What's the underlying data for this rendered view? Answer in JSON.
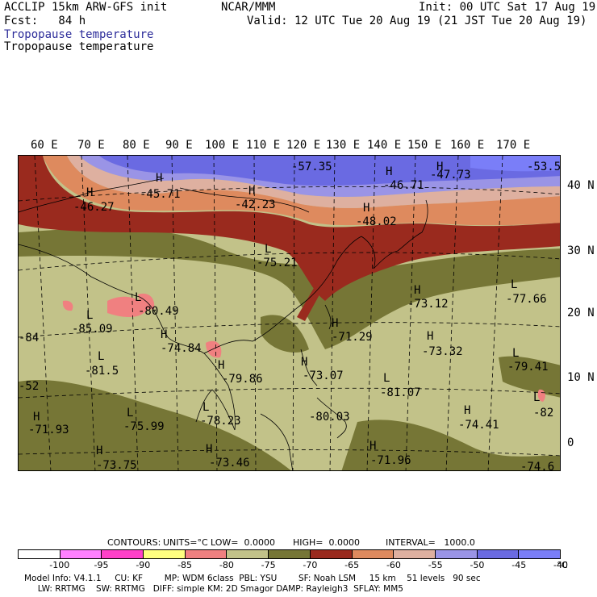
{
  "header": {
    "model_title": "ACCLIP 15km ARW-GFS init",
    "org": "NCAR/MMM",
    "init_time": "Init: 00 UTC Sat 17 Aug 19",
    "forecast": "Fcst:   84 h",
    "valid_time": "Valid: 12 UTC Tue 20 Aug 19 (21 JST Tue 20 Aug 19)",
    "field_shaded": "Tropopause temperature",
    "field_label": "Tropopause temperature"
  },
  "map": {
    "longitude_labels": [
      "60 E",
      "70 E",
      "80 E",
      "90 E",
      "100 E",
      "110 E",
      "120 E",
      "130 E",
      "140 E",
      "150 E",
      "160 E",
      "170 E"
    ],
    "latitude_labels": [
      "40 N",
      "30 N",
      "20 N",
      "10 N",
      "0"
    ],
    "extrema": [
      {
        "mark": "H",
        "value": "-46.27"
      },
      {
        "mark": "H",
        "value": "-45.71"
      },
      {
        "mark": "H",
        "value": "-42.23"
      },
      {
        "mark": "",
        "value": "-57.35"
      },
      {
        "mark": "H",
        "value": "-46.71"
      },
      {
        "mark": "H",
        "value": "-47.73"
      },
      {
        "mark": "",
        "value": "-53.5"
      },
      {
        "mark": "H",
        "value": "-48.02"
      },
      {
        "mark": "L",
        "value": "-75.21"
      },
      {
        "mark": "L",
        "value": "-80.49"
      },
      {
        "mark": "L",
        "value": "-85.09"
      },
      {
        "mark": "",
        "value": "-84"
      },
      {
        "mark": "H",
        "value": "-74.84"
      },
      {
        "mark": "L",
        "value": "-81.5"
      },
      {
        "mark": "H",
        "value": "-79.86"
      },
      {
        "mark": "H",
        "value": "-73.12"
      },
      {
        "mark": "L",
        "value": "-77.66"
      },
      {
        "mark": "H",
        "value": "-71.29"
      },
      {
        "mark": "H",
        "value": "-73.32"
      },
      {
        "mark": "L",
        "value": "-79.41"
      },
      {
        "mark": "H",
        "value": "-73.07"
      },
      {
        "mark": "L",
        "value": "-81.07"
      },
      {
        "mark": "",
        "value": "-52"
      },
      {
        "mark": "H",
        "value": "-71.93"
      },
      {
        "mark": "L",
        "value": "-75.99"
      },
      {
        "mark": "L",
        "value": "-78.23"
      },
      {
        "mark": "",
        "value": "-80.03"
      },
      {
        "mark": "H",
        "value": "-74.41"
      },
      {
        "mark": "L",
        "value": "-82"
      },
      {
        "mark": "H",
        "value": "-73.75"
      },
      {
        "mark": "H",
        "value": "-73.46"
      },
      {
        "mark": "H",
        "value": "-71.96"
      },
      {
        "mark": "",
        "value": "-74.6"
      }
    ]
  },
  "contour_info": {
    "contours": "CONTOURS:",
    "units": "UNITS=°C",
    "low": "LOW=  0.0000",
    "high": "HIGH=  0.0000",
    "interval": "INTERVAL=   1000.0"
  },
  "colorbar": {
    "colors": [
      "#ffffff",
      "#ff80ff",
      "#ff40c8",
      "#ffff80",
      "#f08080",
      "#c2c289",
      "#767636",
      "#9a2a1e",
      "#de8a5e",
      "#deb0a0",
      "#9a94e6",
      "#6a6ae2",
      "#7a7ef8"
    ],
    "labels": [
      "-100",
      "-95",
      "-90",
      "-85",
      "-80",
      "-75",
      "-70",
      "-65",
      "-60",
      "-55",
      "-50",
      "-45",
      "-40"
    ],
    "unit": "°C"
  },
  "footer": {
    "line1": "Model Info: V4.1.1     CU: KF        MP: WDM 6class  PBL: YSU        SF: Noah LSM     15 km    51 levels   90 sec",
    "line2": "     LW: RRTMG    SW: RRTMG   DIFF: simple KM: 2D Smagor DAMP: Rayleigh3  SFLAY: MM5"
  }
}
